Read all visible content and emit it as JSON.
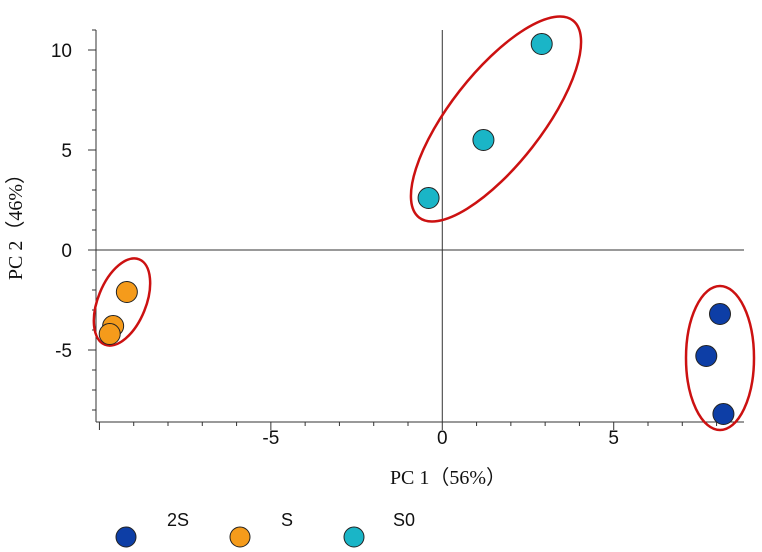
{
  "chart_data": {
    "type": "scatter",
    "xlabel": "PC 1（56%）",
    "ylabel": "PC 2（46%）",
    "xlim": [
      -10.1,
      8.8
    ],
    "ylim": [
      -8.6,
      11.0
    ],
    "xticks": [
      -5,
      0,
      5
    ],
    "yticks": [
      -5,
      0,
      5,
      10
    ],
    "legend_position": "bottom",
    "series": [
      {
        "name": "2S",
        "color": "#0d3ea6",
        "x": [
          8.1,
          7.7,
          8.2
        ],
        "y": [
          -3.2,
          -5.3,
          -8.2
        ]
      },
      {
        "name": "S",
        "color": "#f59b1b",
        "x": [
          -9.2,
          -9.6,
          -9.7
        ],
        "y": [
          -2.1,
          -3.8,
          -4.2
        ]
      },
      {
        "name": "S0",
        "color": "#1ab5c7",
        "x": [
          2.9,
          1.2,
          -0.4
        ],
        "y": [
          10.3,
          5.5,
          2.6
        ]
      }
    ],
    "annotations": [
      {
        "type": "ellipse",
        "group": "2S",
        "color": "#cc1111"
      },
      {
        "type": "ellipse",
        "group": "S",
        "color": "#cc1111"
      },
      {
        "type": "ellipse",
        "group": "S0",
        "color": "#cc1111"
      }
    ]
  }
}
